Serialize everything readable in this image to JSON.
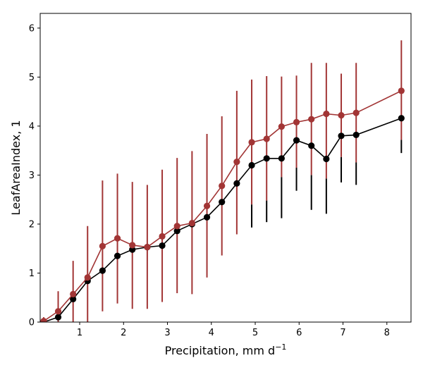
{
  "chart_data": {
    "type": "line",
    "title": "",
    "xlabel": "Precipitation,  mm d",
    "xlabel_sup": "−1",
    "ylabel": "LeafAreaIndex,  1",
    "xlim": [
      0.1,
      8.55
    ],
    "ylim": [
      0,
      6.3
    ],
    "xticks": [
      1,
      2,
      3,
      4,
      5,
      6,
      7,
      8
    ],
    "yticks": [
      0,
      1,
      2,
      3,
      4,
      5,
      6
    ],
    "grid": false,
    "legend": "none",
    "x": [
      0.18,
      0.51,
      0.85,
      1.18,
      1.52,
      1.86,
      2.2,
      2.54,
      2.88,
      3.22,
      3.56,
      3.9,
      4.24,
      4.58,
      4.92,
      5.26,
      5.6,
      5.94,
      6.28,
      6.62,
      6.96,
      7.3,
      8.33
    ],
    "series": [
      {
        "color": "#000000",
        "values": [
          0.0,
          0.1,
          0.47,
          0.84,
          1.05,
          1.35,
          1.48,
          1.53,
          1.56,
          1.86,
          2.0,
          2.14,
          2.45,
          2.83,
          3.2,
          3.34,
          3.34,
          3.71,
          3.6,
          3.33,
          3.8,
          3.82,
          4.16
        ],
        "err_low": [
          0.0,
          0.0,
          0.0,
          0.0,
          0.0,
          0.0,
          0.0,
          0.0,
          0.0,
          0.0,
          0.0,
          0.0,
          1.31,
          1.73,
          1.93,
          2.04,
          2.12,
          2.68,
          2.29,
          2.21,
          2.85,
          2.8,
          3.45
        ],
        "err_high": [
          0.0,
          0.0,
          0.0,
          0.0,
          0.0,
          0.0,
          0.0,
          0.0,
          0.0,
          0.0,
          0.0,
          0.0,
          0.0,
          0.0,
          2.4,
          2.48,
          2.96,
          3.15,
          3.0,
          2.93,
          3.37,
          3.26,
          3.72
        ]
      },
      {
        "color": "#a23535",
        "values": [
          0.02,
          0.22,
          0.57,
          0.91,
          1.55,
          1.71,
          1.57,
          1.53,
          1.75,
          1.96,
          2.02,
          2.37,
          2.78,
          3.27,
          3.67,
          3.74,
          3.99,
          4.08,
          4.14,
          4.25,
          4.22,
          4.27,
          4.72
        ],
        "err_low": [
          0.0,
          0.0,
          0.0,
          0.0,
          0.22,
          0.38,
          0.27,
          0.27,
          0.41,
          0.59,
          0.57,
          0.91,
          1.36,
          1.79,
          2.4,
          2.48,
          2.96,
          3.15,
          3.0,
          2.93,
          3.37,
          3.26,
          3.72
        ],
        "err_high": [
          0.1,
          0.63,
          1.25,
          1.96,
          2.89,
          3.03,
          2.86,
          2.8,
          3.11,
          3.35,
          3.49,
          3.84,
          4.2,
          4.72,
          4.95,
          5.02,
          5.01,
          5.03,
          5.29,
          5.29,
          5.07,
          5.29,
          5.75
        ]
      }
    ]
  }
}
